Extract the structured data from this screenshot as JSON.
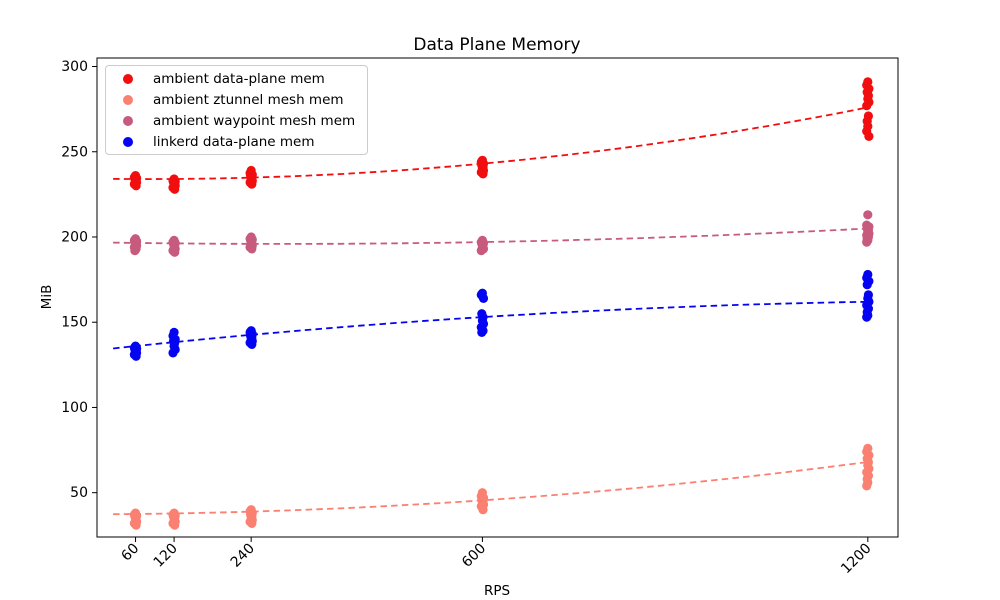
{
  "window": {
    "background": "#ffffff",
    "frame_color": "#000000"
  },
  "chart_data": {
    "type": "scatter",
    "title": "Data Plane Memory",
    "xlabel": "RPS",
    "ylabel": "MiB",
    "xlim": [
      0,
      1247
    ],
    "ylim": [
      24,
      305
    ],
    "x_ticks": [
      60,
      120,
      240,
      600,
      1200
    ],
    "x_tick_labels": [
      "60",
      "120",
      "240",
      "600",
      "1200"
    ],
    "x_tick_rotation_deg": 45,
    "y_ticks": [
      50,
      100,
      150,
      200,
      250,
      300
    ],
    "y_tick_labels": [
      "50",
      "100",
      "150",
      "200",
      "250",
      "300"
    ],
    "grid": false,
    "legend": {
      "position": "upper-left",
      "border_color": "#cccccc"
    },
    "series": [
      {
        "name": "ambient data-plane mem",
        "color": "#f10e0e",
        "marker": "circle",
        "x": [
          60,
          120,
          240,
          600,
          1200
        ],
        "values": [
          [
            236,
            235,
            234.5,
            234,
            233.5,
            233,
            232,
            231,
            230
          ],
          [
            234,
            233,
            232.5,
            232,
            231.5,
            231,
            230,
            229,
            228
          ],
          [
            239,
            237.5,
            236.5,
            236,
            235,
            234,
            233,
            232,
            231
          ],
          [
            245,
            244,
            243,
            242,
            241,
            240,
            239,
            238,
            237
          ],
          [
            291,
            289,
            287,
            285,
            283,
            281,
            279,
            277,
            271,
            268,
            265,
            262,
            259
          ]
        ],
        "trend": {
          "style": "dashed",
          "poly_coefficients": [
            234.21,
            -0.005529,
            3.363e-05
          ],
          "x_range": [
            25,
            1200
          ]
        }
      },
      {
        "name": "ambient ztunnel mesh mem",
        "color": "#fa8072",
        "marker": "circle",
        "x": [
          60,
          120,
          240,
          600,
          1200
        ],
        "values": [
          [
            38,
            37,
            36.5,
            36,
            35,
            34,
            33,
            32,
            31
          ],
          [
            38,
            37,
            36.5,
            36,
            35,
            34,
            33,
            32,
            31
          ],
          [
            40,
            39,
            38,
            37,
            36,
            35,
            34,
            33,
            32
          ],
          [
            50,
            48,
            47,
            46,
            45,
            44,
            43,
            42,
            40
          ],
          [
            76,
            74,
            72,
            70,
            68,
            66,
            64,
            62,
            60,
            58,
            56,
            54
          ]
        ],
        "trend": {
          "style": "dashed",
          "poly_coefficients": [
            37.33,
            0.001678,
            1.9905e-05
          ],
          "x_range": [
            25,
            1200
          ]
        }
      },
      {
        "name": "ambient waypoint mesh mem",
        "color": "#c65b7e",
        "marker": "circle",
        "x": [
          60,
          120,
          240,
          600,
          1200
        ],
        "values": [
          [
            199,
            198,
            197.5,
            197,
            196.5,
            196,
            195,
            194,
            193,
            192
          ],
          [
            198,
            197,
            196.5,
            196,
            195,
            194,
            193,
            192,
            191
          ],
          [
            200,
            199,
            198.5,
            198,
            197,
            196,
            195,
            194,
            193
          ],
          [
            198,
            197,
            196.5,
            196,
            195,
            194,
            193,
            192
          ],
          [
            213,
            207,
            206,
            205,
            204,
            203,
            202,
            201,
            200,
            199,
            198,
            197
          ]
        ],
        "trend": {
          "style": "dashed",
          "poly_coefficients": [
            196.84,
            -0.0062576,
            1.0884e-05
          ],
          "x_range": [
            25,
            1200
          ]
        }
      },
      {
        "name": "linkerd data-plane mem",
        "color": "#0404f2",
        "marker": "circle",
        "x": [
          60,
          120,
          240,
          600,
          1200
        ],
        "values": [
          [
            136,
            135,
            134.5,
            134,
            133.5,
            133,
            132,
            131,
            130
          ],
          [
            144,
            142,
            140,
            139,
            138,
            136,
            134,
            132
          ],
          [
            145,
            144,
            143,
            142,
            141,
            140,
            139,
            138,
            137
          ],
          [
            167,
            166,
            164,
            155,
            153,
            151,
            149,
            147,
            145,
            144
          ],
          [
            178,
            176,
            174,
            172,
            166,
            164,
            162,
            160,
            158,
            156,
            154,
            153
          ]
        ],
        "trend": {
          "style": "dashed",
          "poly_coefficients": [
            133.59,
            0.041023,
            -1.4457e-05
          ],
          "x_range": [
            25,
            1200
          ]
        }
      }
    ]
  }
}
